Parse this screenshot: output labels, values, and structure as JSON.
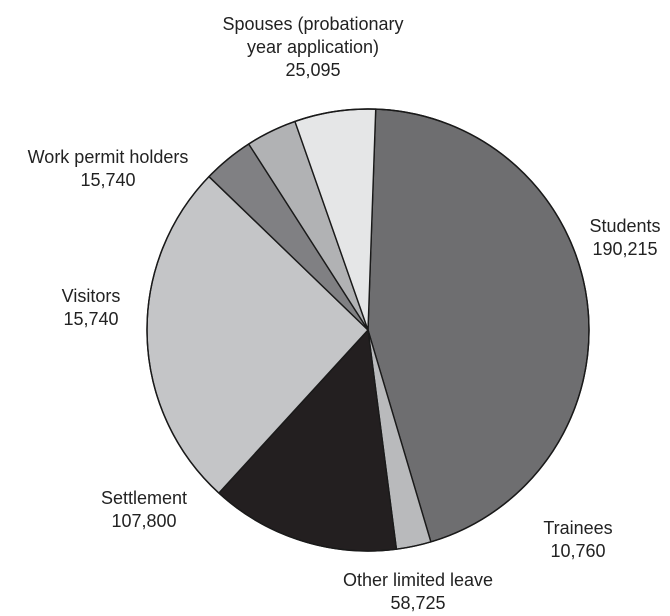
{
  "chart_data": {
    "type": "pie",
    "title": "",
    "start_angle_deg": 2,
    "direction": "clockwise",
    "slices": [
      {
        "label_lines": [
          "Students",
          "190,215"
        ],
        "name": "Students",
        "value": 190215,
        "color": "#6e6e70"
      },
      {
        "label_lines": [
          "Trainees",
          "10,760"
        ],
        "name": "Trainees",
        "value": 10760,
        "color": "#b9babc"
      },
      {
        "label_lines": [
          "Other limited leave",
          "58,725"
        ],
        "name": "Other limited leave",
        "value": 58725,
        "color": "#231f20"
      },
      {
        "label_lines": [
          "Settlement",
          "107,800"
        ],
        "name": "Settlement",
        "value": 107800,
        "color": "#c4c5c7"
      },
      {
        "label_lines": [
          "Visitors",
          "15,740"
        ],
        "name": "Visitors",
        "value": 15740,
        "color": "#808083"
      },
      {
        "label_lines": [
          "Work permit holders",
          "15,740"
        ],
        "name": "Work permit holders",
        "value": 15740,
        "color": "#b1b2b4"
      },
      {
        "label_lines": [
          "Spouses (probationary",
          "year application)",
          "25,095"
        ],
        "name": "Spouses (probationary year application)",
        "value": 25095,
        "color": "#e5e6e7"
      }
    ]
  }
}
